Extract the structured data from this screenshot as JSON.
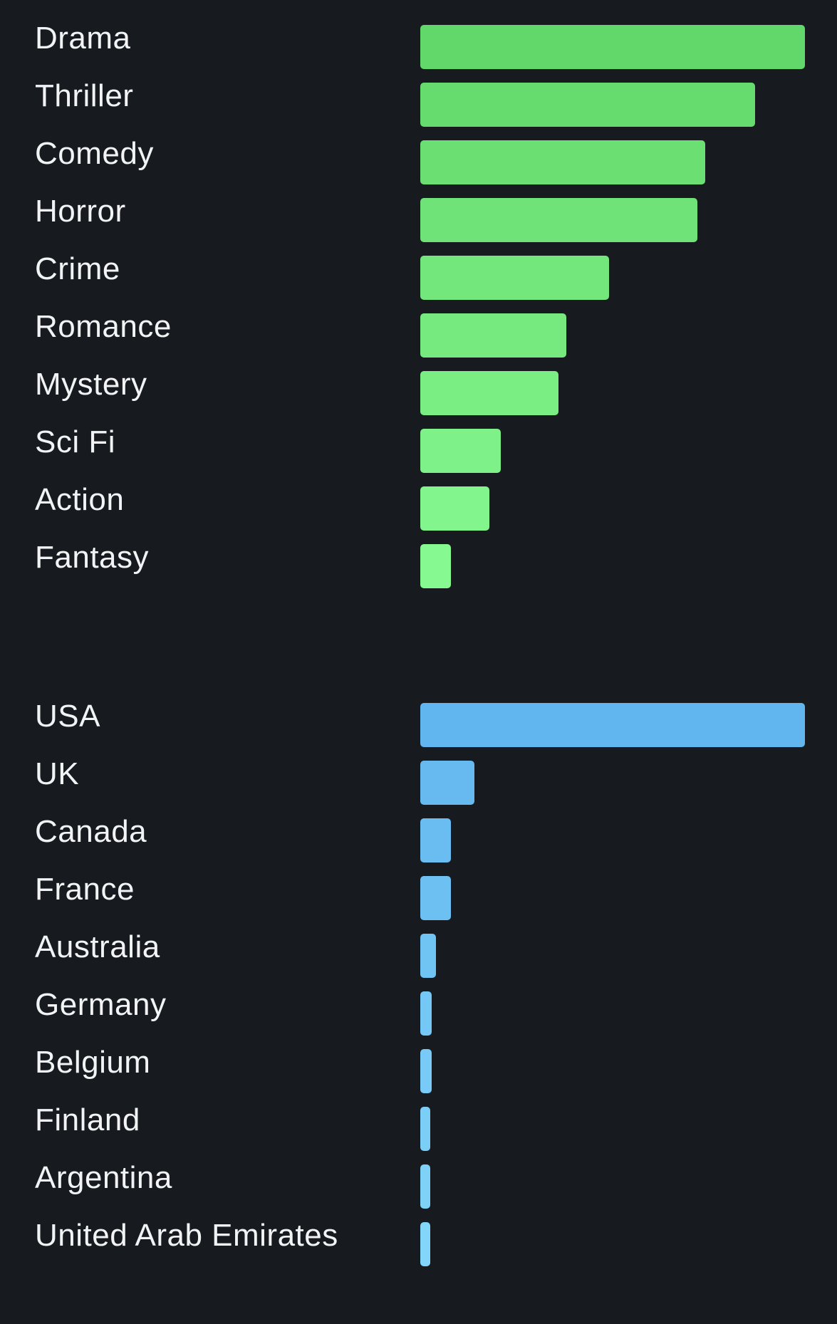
{
  "chart_data": [
    {
      "type": "bar",
      "orientation": "horizontal",
      "categories": [
        "Drama",
        "Thriller",
        "Comedy",
        "Horror",
        "Crime",
        "Romance",
        "Mystery",
        "Sci Fi",
        "Action",
        "Fantasy"
      ],
      "values": [
        100,
        87,
        74,
        72,
        49,
        38,
        36,
        21,
        18,
        8
      ],
      "value_scale": "relative (longest bar = 100)",
      "xlim": [
        0,
        100
      ],
      "color_start": "#63d86a",
      "color_end": "#86f990",
      "grid": false,
      "legend": "none"
    },
    {
      "type": "bar",
      "orientation": "horizontal",
      "categories": [
        "USA",
        "UK",
        "Canada",
        "France",
        "Australia",
        "Germany",
        "Belgium",
        "Finland",
        "Argentina",
        "United Arab Emirates"
      ],
      "values": [
        100,
        14,
        8,
        8,
        4,
        3,
        3,
        2,
        2,
        2
      ],
      "value_scale": "relative (longest bar = 100)",
      "xlim": [
        0,
        100
      ],
      "color_start": "#62b6ef",
      "color_end": "#82d6f9",
      "grid": false,
      "legend": "none"
    }
  ]
}
